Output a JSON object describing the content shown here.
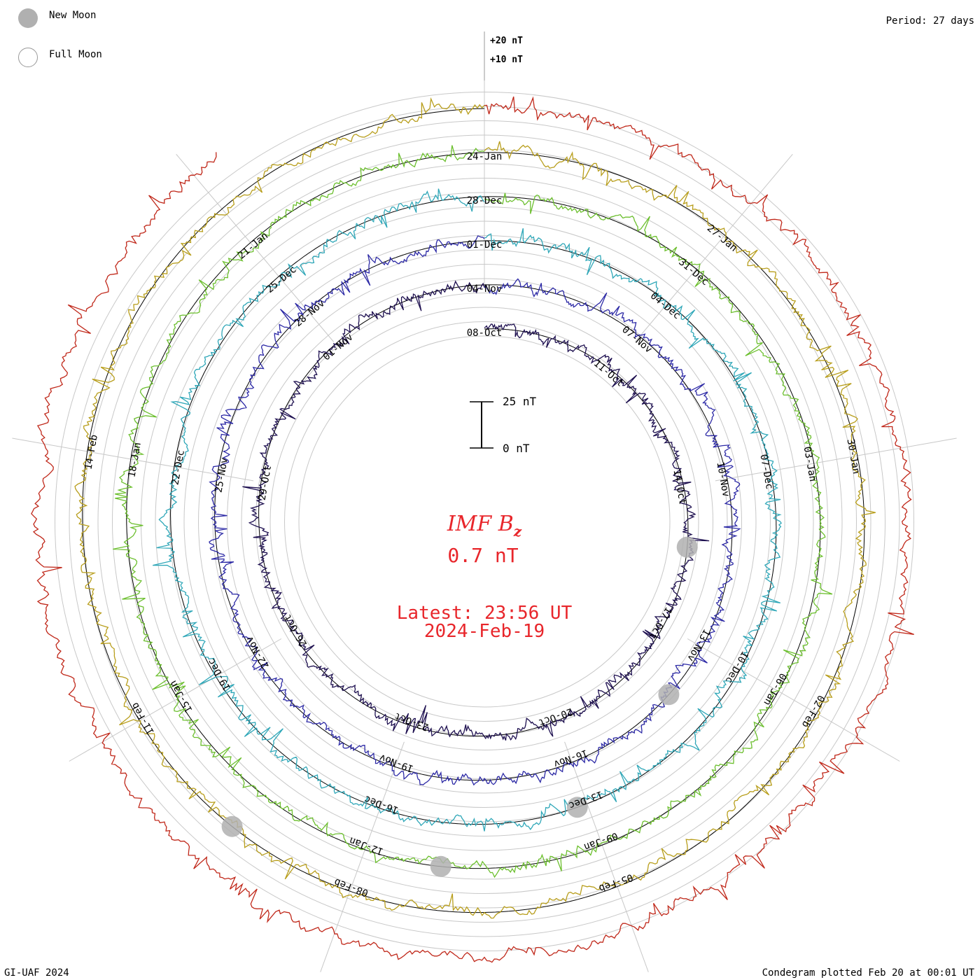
{
  "legend": {
    "new_moon_label": "New Moon",
    "full_moon_label": "Full Moon",
    "new_moon_color": "#b0b0b0",
    "full_moon_color": "#ffffff"
  },
  "period_label": "Period: 27 days",
  "footer": {
    "credit": "GI-UAF 2024",
    "plotted": "Condegram plotted Feb 20 at 00:01 UT"
  },
  "center": {
    "parameter": "IMF B",
    "subscript": "z",
    "value": "0.7 nT",
    "latest_time": "Latest: 23:56 UT",
    "latest_date": "2024-Feb-19",
    "accent": "#e8262b"
  },
  "chart_data": {
    "type": "condegram",
    "title": "IMF Bz",
    "period_days": 27,
    "units": "nT",
    "scale_bar": {
      "top_label": "25 nT",
      "bottom_label": "0 nT",
      "top_value": 25,
      "bottom_value": 0
    },
    "ring_offsets": {
      "labels": [
        "+20 nT",
        "+10 nT"
      ],
      "values": [
        20,
        10
      ]
    },
    "cycles": [
      {
        "index": 0,
        "color": "#1e1050",
        "dates": [
          "08-Oct",
          "11-Oct",
          "14-Oct",
          "17-Oct",
          "20-Oct",
          "23-Oct",
          "26-Oct",
          "29-Oct",
          "01-Nov"
        ]
      },
      {
        "index": 1,
        "color": "#2d2aa6",
        "dates": [
          "04-Nov",
          "07-Nov",
          "10-Nov",
          "13-Nov",
          "16-Nov",
          "19-Nov",
          "22-Nov",
          "25-Nov",
          "28-Nov"
        ]
      },
      {
        "index": 2,
        "color": "#2fa7b8",
        "dates": [
          "01-Dec",
          "04-Dec",
          "07-Dec",
          "10-Dec",
          "13-Dec",
          "16-Dec",
          "19-Dec",
          "22-Dec",
          "25-Dec"
        ]
      },
      {
        "index": 3,
        "color": "#6cbf2e",
        "dates": [
          "28-Dec",
          "31-Dec",
          "03-Jan",
          "06-Jan",
          "09-Jan",
          "12-Jan",
          "15-Jan",
          "18-Jan",
          "21-Jan"
        ]
      },
      {
        "index": 4,
        "color": "#b89e1c",
        "dates": [
          "24-Jan",
          "27-Jan",
          "30-Jan",
          "02-Feb",
          "05-Feb",
          "08-Feb",
          "11-Feb",
          "14-Feb"
        ]
      },
      {
        "index": 5,
        "color": "#c0281a",
        "dates": []
      }
    ],
    "moon_phases": [
      {
        "type": "new",
        "cycle": 0,
        "day_fraction": 0.27
      },
      {
        "type": "new",
        "cycle": 1,
        "day_fraction": 0.37
      },
      {
        "type": "new",
        "cycle": 2,
        "day_fraction": 0.45
      },
      {
        "type": "new",
        "cycle": 3,
        "day_fraction": 0.52
      },
      {
        "type": "new",
        "cycle": 4,
        "day_fraction": 0.61
      }
    ],
    "latest_value": 0.7
  }
}
